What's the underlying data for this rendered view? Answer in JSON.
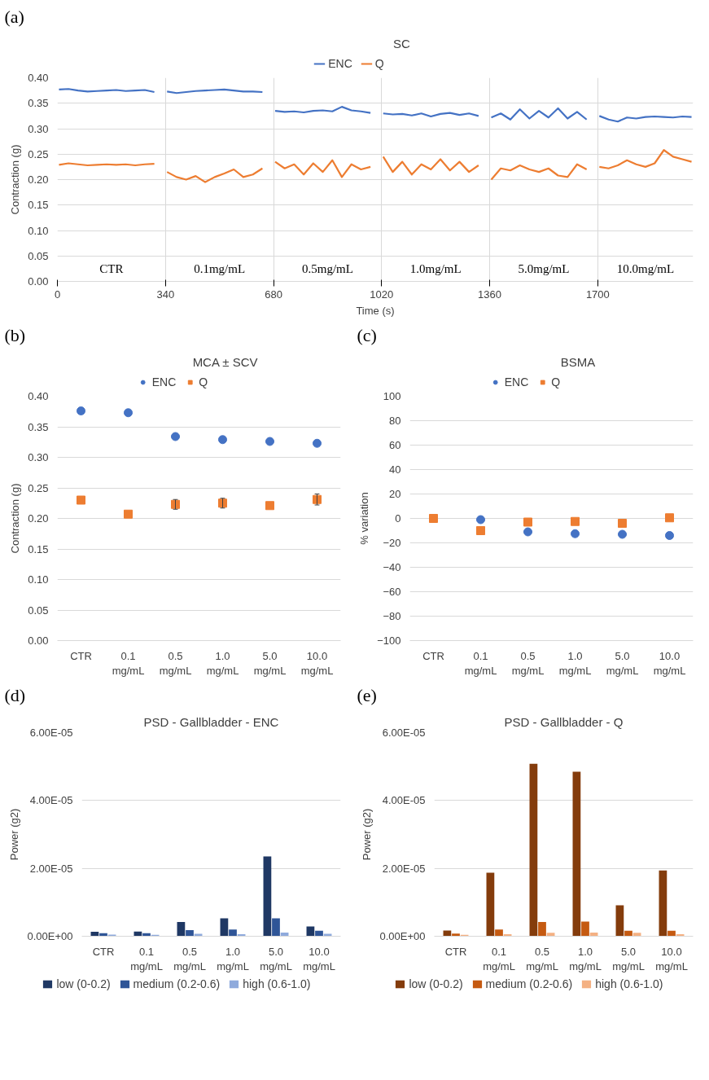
{
  "chart_data": [
    {
      "type": "line",
      "title": "SC",
      "xlabel": "Time (s)",
      "ylabel": "Contraction (g)",
      "legend": "top",
      "grid": true,
      "line_style": "solid",
      "xlim": [
        0,
        2000
      ],
      "xticks": [
        0,
        340,
        680,
        1020,
        1360,
        1700
      ],
      "ylim": [
        0,
        0.4
      ],
      "yticks": [
        {
          "value": 0,
          "label": "0.00"
        },
        {
          "value": 0.05,
          "label": "0.05"
        },
        {
          "value": 0.1,
          "label": "0.10"
        },
        {
          "value": 0.15,
          "label": "0.15"
        },
        {
          "value": 0.2,
          "label": "0.20"
        },
        {
          "value": 0.25,
          "label": "0.25"
        },
        {
          "value": 0.3,
          "label": "0.30"
        },
        {
          "value": 0.35,
          "label": "0.35"
        },
        {
          "value": 0.4,
          "label": "0.40"
        }
      ],
      "x": [
        5,
        35,
        65,
        95,
        125,
        155,
        185,
        215,
        245,
        275,
        305,
        320,
        345,
        375,
        405,
        435,
        465,
        495,
        525,
        555,
        585,
        615,
        645,
        660,
        685,
        715,
        745,
        775,
        805,
        835,
        865,
        895,
        925,
        955,
        985,
        1000,
        1025,
        1055,
        1085,
        1115,
        1145,
        1175,
        1205,
        1235,
        1265,
        1295,
        1325,
        1340,
        1365,
        1395,
        1425,
        1455,
        1485,
        1515,
        1545,
        1575,
        1605,
        1635,
        1665,
        1680,
        1705,
        1734,
        1763,
        1792,
        1821,
        1850,
        1879,
        1908,
        1937,
        1966,
        1995
      ],
      "series": [
        {
          "name": "ENC",
          "color": "#4472c4",
          "values": [
            0.377,
            0.378,
            0.375,
            0.373,
            0.374,
            0.375,
            0.376,
            0.374,
            0.375,
            0.376,
            0.372,
            null,
            0.373,
            0.37,
            0.372,
            0.374,
            0.375,
            0.376,
            0.377,
            0.375,
            0.373,
            0.373,
            0.372,
            null,
            0.335,
            0.333,
            0.334,
            0.332,
            0.335,
            0.336,
            0.334,
            0.343,
            0.336,
            0.334,
            0.331,
            null,
            0.33,
            0.328,
            0.329,
            0.326,
            0.33,
            0.324,
            0.329,
            0.331,
            0.327,
            0.33,
            0.325,
            null,
            0.322,
            0.33,
            0.318,
            0.338,
            0.32,
            0.335,
            0.322,
            0.34,
            0.32,
            0.333,
            0.318,
            null,
            0.325,
            0.318,
            0.314,
            0.322,
            0.32,
            0.323,
            0.324,
            0.323,
            0.322,
            0.324,
            0.323
          ]
        },
        {
          "name": "Q",
          "color": "#ed7d31",
          "values": [
            0.229,
            0.232,
            0.23,
            0.228,
            0.229,
            0.23,
            0.229,
            0.23,
            0.228,
            0.23,
            0.231,
            null,
            0.215,
            0.205,
            0.2,
            0.207,
            0.195,
            0.205,
            0.212,
            0.22,
            0.205,
            0.21,
            0.222,
            null,
            0.235,
            0.222,
            0.23,
            0.21,
            0.232,
            0.215,
            0.238,
            0.205,
            0.23,
            0.22,
            0.225,
            null,
            0.245,
            0.215,
            0.235,
            0.21,
            0.23,
            0.22,
            0.24,
            0.218,
            0.235,
            0.215,
            0.228,
            null,
            0.2,
            0.222,
            0.218,
            0.228,
            0.22,
            0.215,
            0.222,
            0.208,
            0.205,
            0.23,
            0.22,
            null,
            0.225,
            0.222,
            0.228,
            0.238,
            0.23,
            0.225,
            0.232,
            0.258,
            0.245,
            0.24,
            0.235
          ]
        }
      ],
      "annotations": [
        "(a)",
        "CTR",
        "0.1mg/mL",
        "0.5mg/mL",
        "1.0mg/mL",
        "5.0mg/mL",
        "10.0mg/mL"
      ]
    },
    {
      "type": "scatter",
      "title": "MCA ± SCV",
      "ylabel": "Contraction (g)",
      "legend": "top",
      "grid": "y",
      "categories": [
        "CTR",
        "0.1 mg/mL",
        "0.5 mg/mL",
        "1.0 mg/mL",
        "5.0 mg/mL",
        "10.0 mg/mL"
      ],
      "ylim": [
        0,
        0.4
      ],
      "yticks": [
        {
          "value": 0,
          "label": "0.00"
        },
        {
          "value": 0.05,
          "label": "0.05"
        },
        {
          "value": 0.1,
          "label": "0.10"
        },
        {
          "value": 0.15,
          "label": "0.15"
        },
        {
          "value": 0.2,
          "label": "0.20"
        },
        {
          "value": 0.25,
          "label": "0.25"
        },
        {
          "value": 0.3,
          "label": "0.30"
        },
        {
          "value": 0.35,
          "label": "0.35"
        },
        {
          "value": 0.4,
          "label": "0.40"
        }
      ],
      "series": [
        {
          "name": "ENC",
          "color": "#4472c4",
          "marker": "circle",
          "values": [
            0.376,
            0.373,
            0.334,
            0.329,
            0.326,
            0.323
          ]
        },
        {
          "name": "Q",
          "color": "#ed7d31",
          "marker": "square",
          "values": [
            0.23,
            0.207,
            0.223,
            0.225,
            0.221,
            0.231
          ],
          "errors": [
            null,
            null,
            0.008,
            0.008,
            null,
            0.009
          ]
        }
      ],
      "annotations": [
        "(b)"
      ]
    },
    {
      "type": "scatter",
      "title": "BSMA",
      "ylabel": "% variation",
      "legend": "top",
      "grid": "y",
      "categories": [
        "CTR",
        "0.1 mg/mL",
        "0.5 mg/mL",
        "1.0 mg/mL",
        "5.0 mg/mL",
        "10.0 mg/mL"
      ],
      "ylim": [
        -100,
        100
      ],
      "yticks": [
        -100,
        -80,
        -60,
        -40,
        -20,
        0,
        20,
        40,
        60,
        80,
        100
      ],
      "series": [
        {
          "name": "ENC",
          "color": "#4472c4",
          "marker": "circle",
          "values": [
            null,
            -1,
            -11,
            -12.5,
            -13,
            -14
          ]
        },
        {
          "name": "Q",
          "color": "#ed7d31",
          "marker": "square",
          "values": [
            0,
            -10,
            -3,
            -2.5,
            -4,
            0.5
          ]
        }
      ],
      "annotations": [
        "(c)"
      ]
    },
    {
      "type": "bar",
      "title": "PSD - Gallbladder - ENC",
      "ylabel": "Power (g2)",
      "legend": "bottom",
      "grid": "y",
      "categories": [
        "CTR",
        "0.1 mg/mL",
        "0.5 mg/mL",
        "1.0 mg/mL",
        "5.0 mg/mL",
        "10.0 mg/mL"
      ],
      "ylim": [
        0,
        6e-05
      ],
      "yticks": [
        {
          "value": 0,
          "label": "0.00E+00"
        },
        {
          "value": 2e-05,
          "label": "2.00E-05"
        },
        {
          "value": 4e-05,
          "label": "4.00E-05"
        },
        {
          "value": 6e-05,
          "label": "6.00E-05"
        }
      ],
      "series": [
        {
          "name": "low (0-0.2)",
          "color": "#1f3864",
          "values": [
            1.3e-06,
            1.4e-06,
            4.2e-06,
            5.3e-06,
            2.35e-05,
            2.9e-06
          ]
        },
        {
          "name": "medium (0.2-0.6)",
          "color": "#2f5597",
          "values": [
            9e-07,
            9e-07,
            1.8e-06,
            2e-06,
            5.3e-06,
            1.6e-06
          ]
        },
        {
          "name": "high (0.6-1.0)",
          "color": "#8faadc",
          "values": [
            5e-07,
            4e-07,
            7e-07,
            6e-07,
            1.1e-06,
            7e-07
          ]
        }
      ],
      "annotations": [
        "(d)"
      ]
    },
    {
      "type": "bar",
      "title": "PSD - Gallbladder - Q",
      "ylabel": "Power (g2)",
      "legend": "bottom",
      "grid": "y",
      "categories": [
        "CTR",
        "0.1 mg/mL",
        "0.5 mg/mL",
        "1.0 mg/mL",
        "5.0 mg/mL",
        "10.0 mg/mL"
      ],
      "ylim": [
        0,
        6e-05
      ],
      "yticks": [
        {
          "value": 0,
          "label": "0.00E+00"
        },
        {
          "value": 2e-05,
          "label": "2.00E-05"
        },
        {
          "value": 4e-05,
          "label": "4.00E-05"
        },
        {
          "value": 6e-05,
          "label": "6.00E-05"
        }
      ],
      "series": [
        {
          "name": "low (0-0.2)",
          "color": "#843c0c",
          "values": [
            1.7e-06,
            1.87e-05,
            5.08e-05,
            4.85e-05,
            9.1e-06,
            1.94e-05
          ]
        },
        {
          "name": "medium (0.2-0.6)",
          "color": "#c55a11",
          "values": [
            8e-07,
            2e-06,
            4.2e-06,
            4.3e-06,
            1.6e-06,
            1.6e-06
          ]
        },
        {
          "name": "high (0.6-1.0)",
          "color": "#f4b183",
          "values": [
            4e-07,
            6e-07,
            1e-06,
            1.1e-06,
            1e-06,
            6e-07
          ]
        }
      ],
      "annotations": [
        "(e)"
      ]
    }
  ]
}
